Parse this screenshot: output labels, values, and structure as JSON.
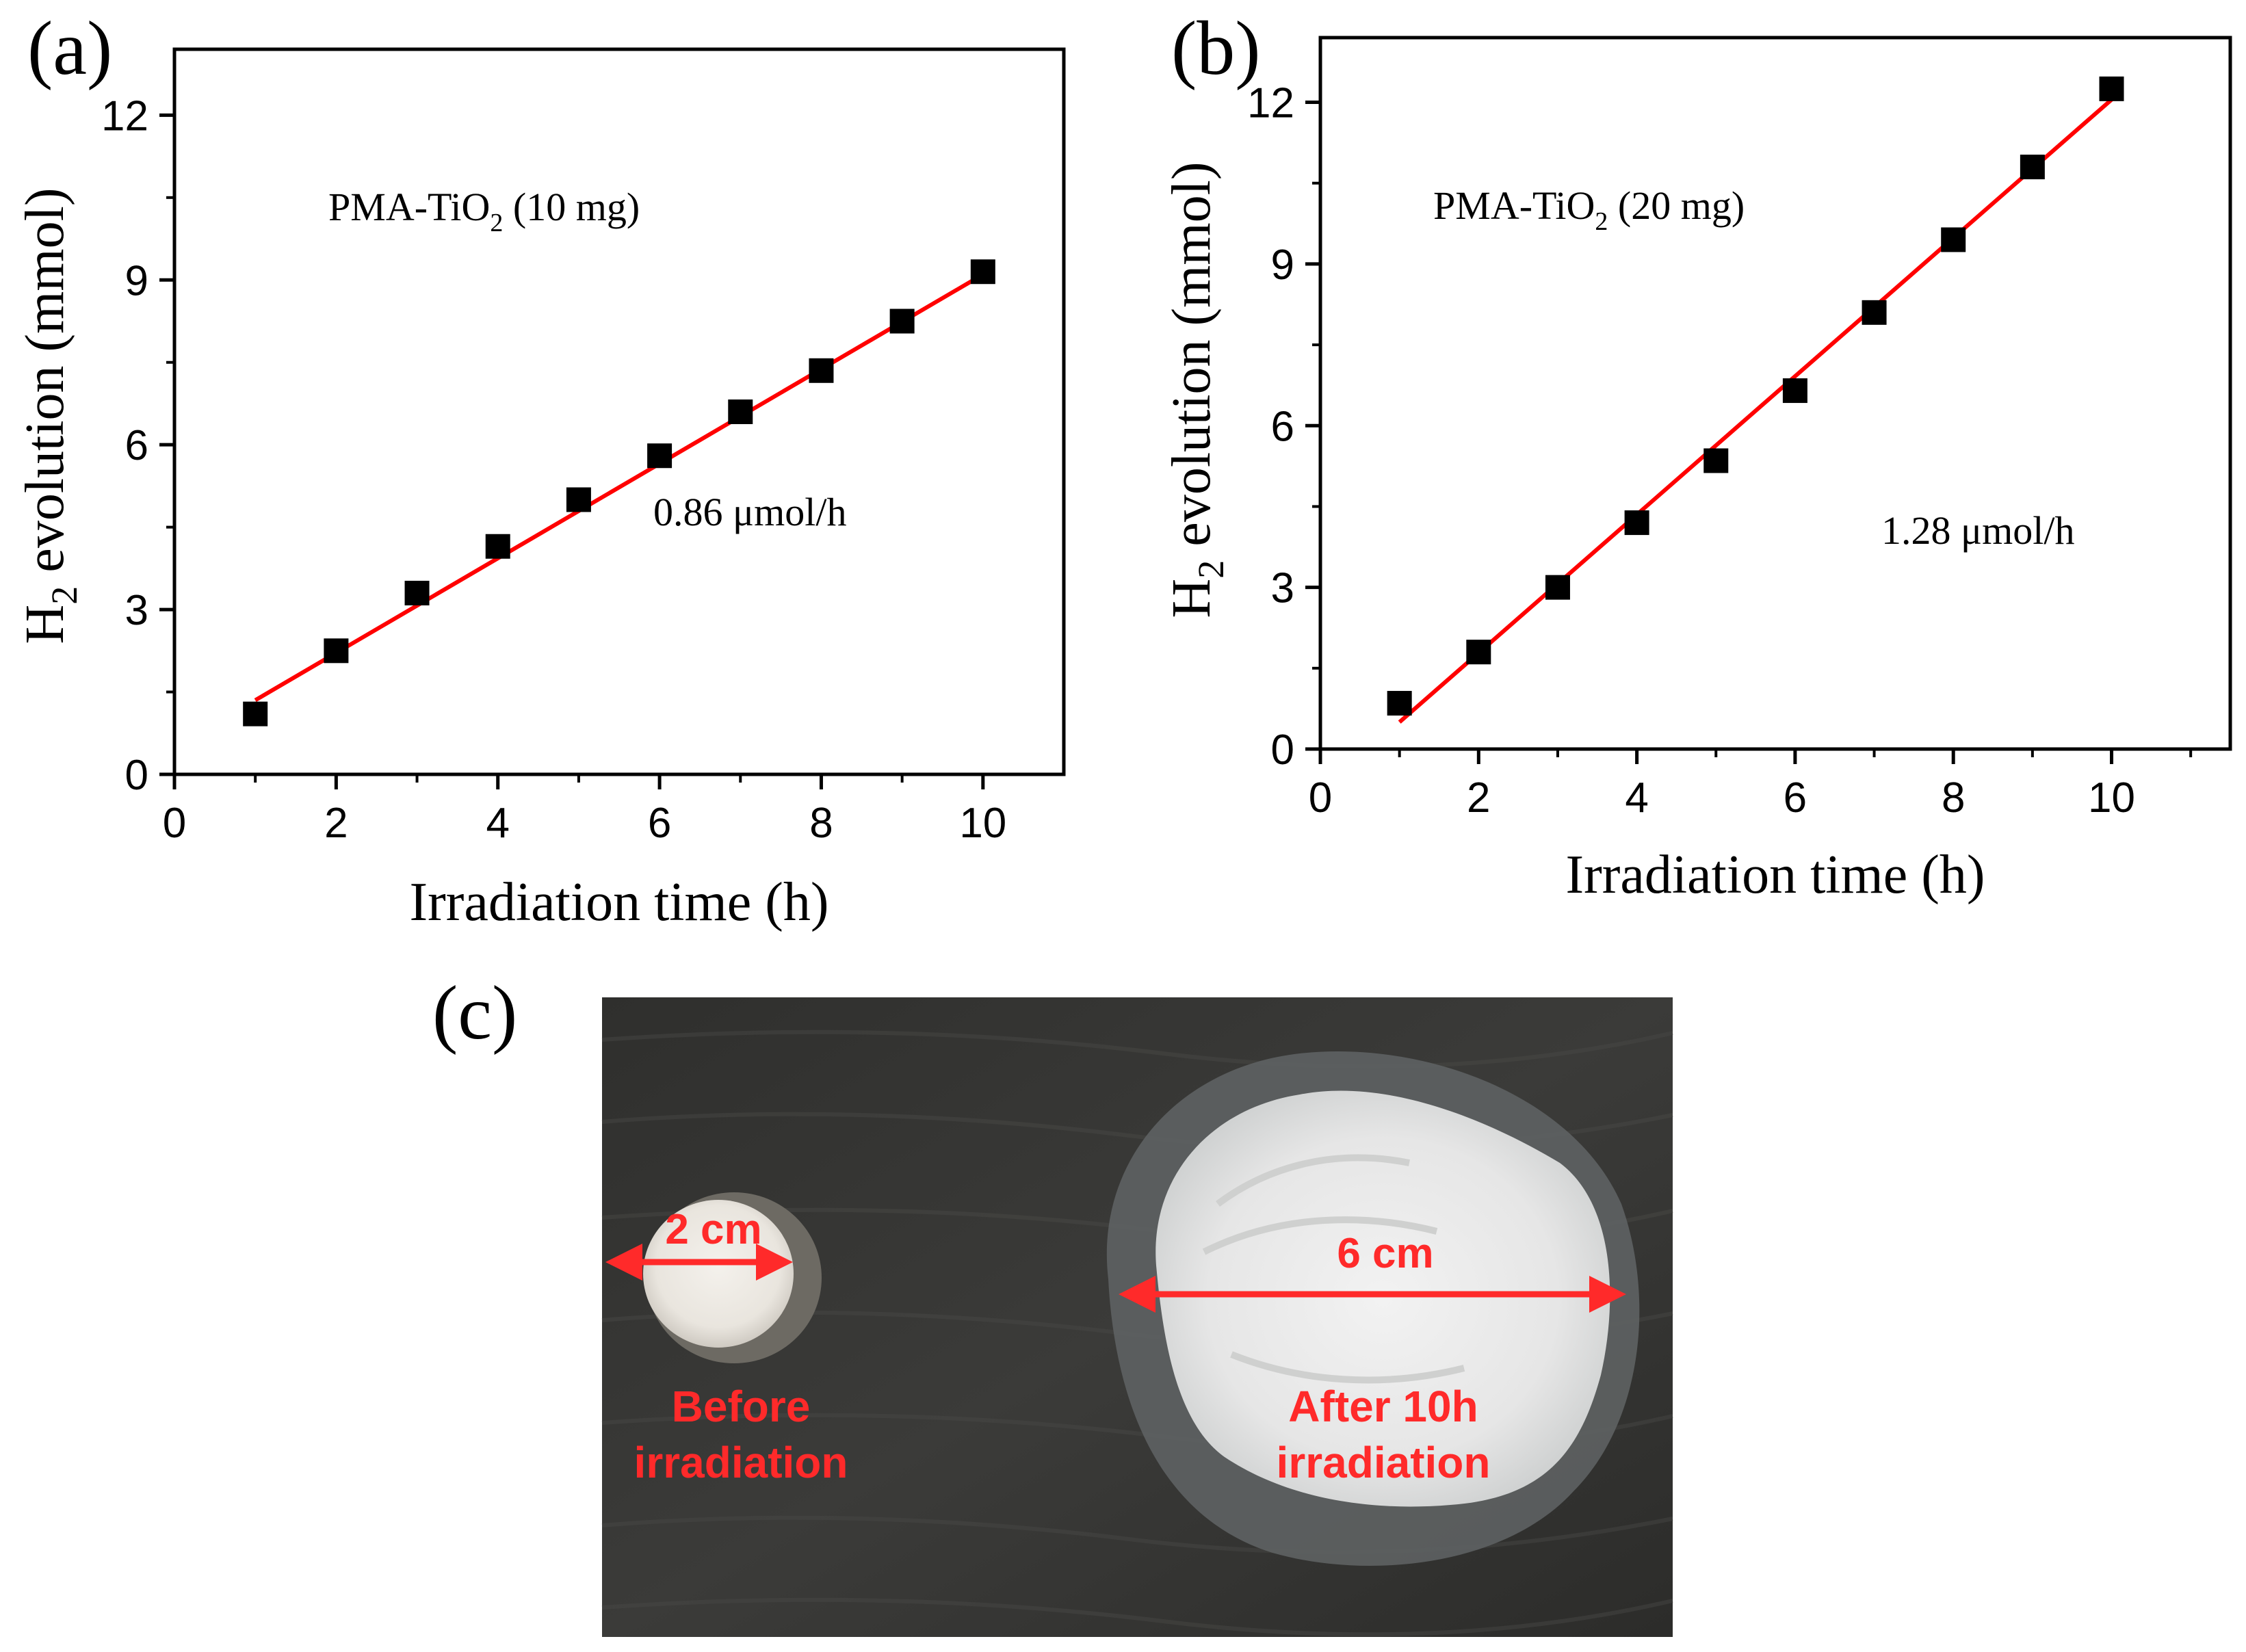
{
  "panels": {
    "a": {
      "label": "(a)",
      "annotation_main": "PMA-TiO",
      "annotation_sub": "2",
      "annotation_tail": " (10 mg)",
      "rate": "0.86 μmol/h",
      "ylabel_main": "H",
      "ylabel_sub": "2",
      "ylabel_tail": " evolution (mmol)",
      "xlabel": "Irradiation time (h)"
    },
    "b": {
      "label": "(b)",
      "annotation_main": "PMA-TiO",
      "annotation_sub": "2",
      "annotation_tail": " (20 mg)",
      "rate": "1.28 μmol/h",
      "ylabel_main": "H",
      "ylabel_sub": "2",
      "ylabel_tail": " evolution (mmol)",
      "xlabel": "Irradiation time (h)"
    },
    "c": {
      "label": "(c)",
      "small_dim": "2 cm",
      "small_caption_1": "Before",
      "small_caption_2": "irradiation",
      "large_dim": "6 cm",
      "large_caption_1": "After 10h",
      "large_caption_2": "irradiation"
    }
  },
  "colors": {
    "marker": "#000000",
    "fit_line": "#ff0000",
    "photo_text": "#ff2a2a",
    "photo_bg": "#3a3a38"
  },
  "chart_data": [
    {
      "type": "scatter",
      "panel": "a",
      "x": [
        1,
        2,
        3,
        4,
        5,
        6,
        7,
        8,
        9,
        10
      ],
      "y": [
        1.1,
        2.25,
        3.3,
        4.15,
        5.0,
        5.8,
        6.6,
        7.35,
        8.25,
        9.15
      ],
      "fit": {
        "x": [
          1,
          10
        ],
        "y": [
          1.35,
          9.1
        ]
      },
      "xlim": [
        0,
        11
      ],
      "ylim": [
        0,
        13.2
      ],
      "xticks": [
        "0",
        "2",
        "4",
        "6",
        "8",
        "10"
      ],
      "yticks": [
        "0",
        "3",
        "6",
        "9",
        "12"
      ],
      "grid": false
    },
    {
      "type": "scatter",
      "panel": "b",
      "x": [
        1,
        2,
        3,
        4,
        5,
        6,
        7,
        8,
        9,
        10
      ],
      "y": [
        0.85,
        1.8,
        3.0,
        4.2,
        5.35,
        6.65,
        8.1,
        9.45,
        10.8,
        12.25
      ],
      "fit": {
        "x": [
          1,
          10
        ],
        "y": [
          0.5,
          12.05
        ]
      },
      "xlim": [
        0,
        11.5
      ],
      "ylim": [
        0,
        13.2
      ],
      "xticks": [
        "0",
        "2",
        "4",
        "6",
        "8",
        "10"
      ],
      "yticks": [
        "0",
        "3",
        "6",
        "9",
        "12"
      ],
      "grid": false
    }
  ]
}
